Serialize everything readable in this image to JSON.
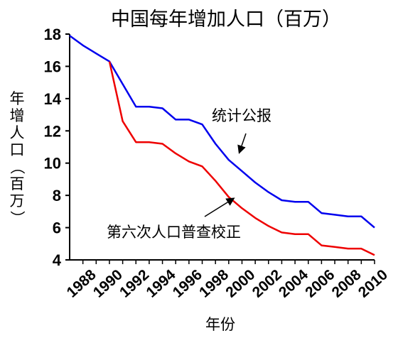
{
  "chart_data": {
    "type": "line",
    "title": "中国每年增加人口（百万）",
    "xlabel": "年份",
    "ylabel": [
      "年",
      "增",
      "人",
      "口",
      "（",
      "百",
      "万",
      "）"
    ],
    "xlim": [
      1987,
      2010
    ],
    "ylim": [
      4,
      18
    ],
    "y_ticks": [
      "4",
      "6",
      "8",
      "10",
      "12",
      "14",
      "16",
      "18"
    ],
    "x_ticks": [
      "1988",
      "1990",
      "1992",
      "1994",
      "1996",
      "1998",
      "2000",
      "2002",
      "2004",
      "2006",
      "2008",
      "2010"
    ],
    "grid": false,
    "series": [
      {
        "name": "统计公报",
        "color": "#0000ee",
        "x": [
          1987,
          1988,
          1989,
          1990,
          1991,
          1992,
          1993,
          1994,
          1995,
          1996,
          1997,
          1998,
          1999,
          2000,
          2001,
          2002,
          2003,
          2004,
          2005,
          2006,
          2007,
          2008,
          2009,
          2010
        ],
        "values": [
          17.9,
          17.3,
          16.8,
          16.3,
          14.9,
          13.5,
          13.5,
          13.4,
          12.7,
          12.7,
          12.4,
          11.2,
          10.2,
          9.5,
          8.8,
          8.2,
          7.7,
          7.6,
          7.6,
          6.9,
          6.8,
          6.7,
          6.7,
          6.0
        ]
      },
      {
        "name": "第六次人口普查校正",
        "color": "#ee0000",
        "x": [
          1990,
          1991,
          1992,
          1993,
          1994,
          1995,
          1996,
          1997,
          1998,
          1999,
          2000,
          2001,
          2002,
          2003,
          2004,
          2005,
          2006,
          2007,
          2008,
          2009,
          2010
        ],
        "values": [
          16.3,
          12.6,
          11.3,
          11.3,
          11.2,
          10.6,
          10.1,
          9.8,
          8.9,
          7.9,
          7.2,
          6.6,
          6.1,
          5.7,
          5.6,
          5.6,
          4.9,
          4.8,
          4.7,
          4.7,
          4.3
        ]
      }
    ],
    "annotations": [
      "统计公报",
      "第六次人口普查校正"
    ]
  }
}
